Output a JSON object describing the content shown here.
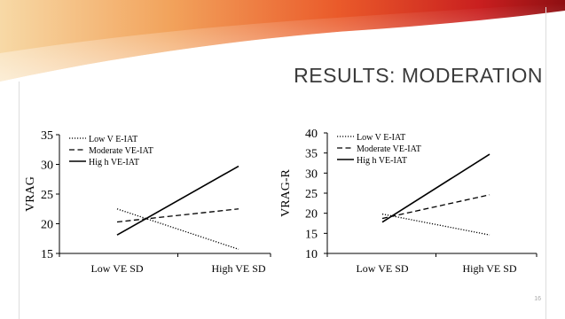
{
  "slide": {
    "title": "RESULTS: MODERATION",
    "page_number": "16",
    "header_colors": [
      "#f7d9a6",
      "#f2a35c",
      "#ea5a2a",
      "#c91f1f",
      "#8e0f12"
    ]
  },
  "chart_data": [
    {
      "type": "line",
      "title": "",
      "xlabel": "",
      "ylabel": "VRAG",
      "categories": [
        "Low VE SD",
        "High VE SD"
      ],
      "ylim": [
        15,
        35
      ],
      "yticks": [
        "15",
        "20",
        "25",
        "30",
        "35"
      ],
      "grid": false,
      "legend_position": "top-left",
      "series": [
        {
          "name": "Low V E-IAT",
          "style": "dotted",
          "values": [
            22.5,
            15.7
          ]
        },
        {
          "name": "Moderate VE-IAT",
          "style": "dashed",
          "values": [
            20.3,
            22.5
          ]
        },
        {
          "name": "Hig h VE-IAT",
          "style": "solid",
          "values": [
            18.1,
            29.7
          ]
        }
      ]
    },
    {
      "type": "line",
      "title": "",
      "xlabel": "",
      "ylabel": "VRAG-R",
      "categories": [
        "Low VE SD",
        "High VE SD"
      ],
      "ylim": [
        10,
        40
      ],
      "yticks": [
        "10",
        "15",
        "20",
        "25",
        "30",
        "35",
        "40"
      ],
      "grid": false,
      "legend_position": "top-left",
      "series": [
        {
          "name": "Low V E-IAT",
          "style": "dotted",
          "values": [
            19.8,
            14.6
          ]
        },
        {
          "name": "Moderate VE-IAT",
          "style": "dashed",
          "values": [
            18.7,
            24.6
          ]
        },
        {
          "name": "Hig h VE-IAT",
          "style": "solid",
          "values": [
            17.8,
            34.7
          ]
        }
      ]
    }
  ]
}
